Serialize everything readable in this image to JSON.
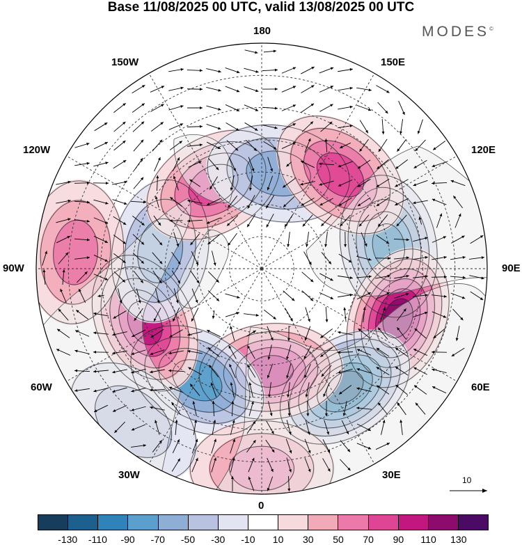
{
  "title": "Base 11/08/2025 00 UTC, valid 13/08/2025 00 UTC",
  "brand": "MODES",
  "brand_mark": "©",
  "longitude_labels": {
    "n180": "180",
    "w150": "150W",
    "e150": "150E",
    "w120": "120W",
    "e120": "120E",
    "w90": "90W",
    "e90": "90E",
    "w60": "60W",
    "e60": "60E",
    "w30": "30W",
    "e30": "30E",
    "s0": "0"
  },
  "reference_vector": {
    "label": "10",
    "value": 10
  },
  "colorbar": {
    "colors": [
      "#173d5c",
      "#1d5f8d",
      "#2f83b9",
      "#5b9fcc",
      "#8eaed6",
      "#b9c2e0",
      "#e3e4f2",
      "#ffffff",
      "#f7dadd",
      "#f2aab9",
      "#ec79a9",
      "#df4595",
      "#c1177f",
      "#8d0b6c",
      "#4b0a63"
    ],
    "ticks": [
      "-130",
      "-110",
      "-90",
      "-70",
      "-50",
      "-30",
      "-10",
      "10",
      "30",
      "50",
      "70",
      "90",
      "110",
      "130"
    ]
  },
  "anomaly_centers": [
    {
      "id": "neg-east-pacific-asia",
      "lon": 100,
      "colat_deg": 40,
      "value": -90
    },
    {
      "id": "pos-siberia-east",
      "lon": 70,
      "colat_deg": 45,
      "value": 110
    },
    {
      "id": "neg-ural",
      "lon": 35,
      "colat_deg": 45,
      "value": -110
    },
    {
      "id": "pos-scandinavia",
      "lon": 5,
      "colat_deg": 32,
      "value": 90
    },
    {
      "id": "neg-north-atlantic",
      "lon": -30,
      "colat_deg": 40,
      "value": -70
    },
    {
      "id": "pos-greenland-canada",
      "lon": -65,
      "colat_deg": 40,
      "value": 90
    },
    {
      "id": "neg-hudson",
      "lon": -100,
      "colat_deg": 32,
      "value": -50
    },
    {
      "id": "pos-west-canada",
      "lon": -95,
      "colat_deg": 58,
      "value": 50
    },
    {
      "id": "pos-alaska",
      "lon": -150,
      "colat_deg": 30,
      "value": 70
    },
    {
      "id": "neg-bering",
      "lon": 170,
      "colat_deg": 30,
      "value": -50
    },
    {
      "id": "pos-kamchatka",
      "lon": 140,
      "colat_deg": 38,
      "value": 70
    },
    {
      "id": "pos-europe-south",
      "lon": 0,
      "colat_deg": 62,
      "value": 50
    },
    {
      "id": "neg-east-atlantic-south",
      "lon": -40,
      "colat_deg": 62,
      "value": -30
    }
  ]
}
